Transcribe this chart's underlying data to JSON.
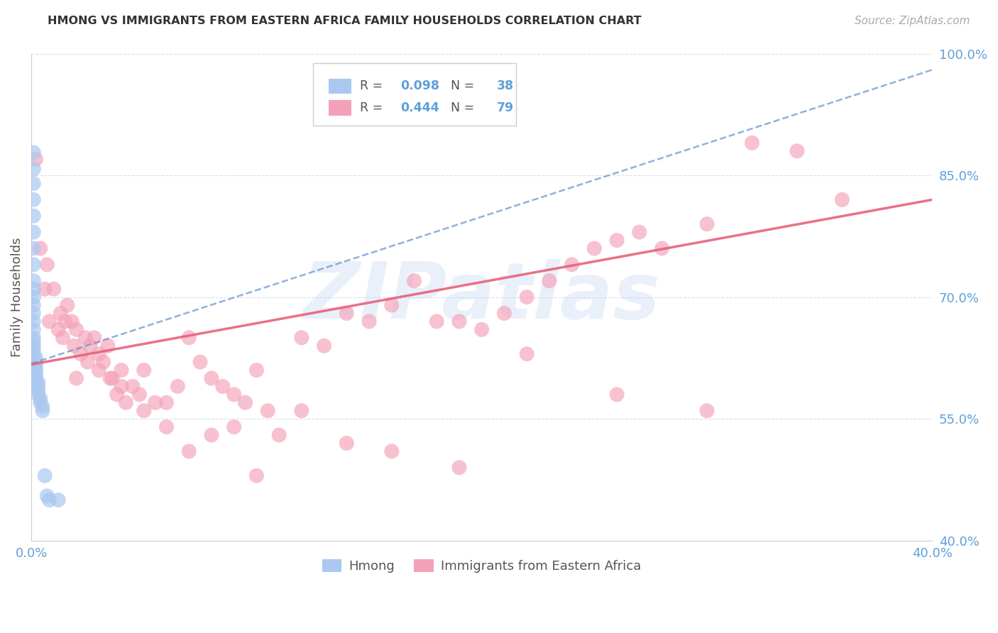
{
  "title": "HMONG VS IMMIGRANTS FROM EASTERN AFRICA FAMILY HOUSEHOLDS CORRELATION CHART",
  "source": "Source: ZipAtlas.com",
  "ylabel": "Family Households",
  "watermark": "ZIPatlas",
  "legend_hmong": "Hmong",
  "legend_eastern": "Immigrants from Eastern Africa",
  "R_hmong": 0.098,
  "N_hmong": 38,
  "R_eastern": 0.444,
  "N_eastern": 79,
  "xmin": 0.0,
  "xmax": 0.4,
  "ymin": 0.4,
  "ymax": 1.0,
  "right_yticks": [
    1.0,
    0.85,
    0.7,
    0.55,
    0.4
  ],
  "right_yticklabels": [
    "100.0%",
    "85.0%",
    "70.0%",
    "55.0%",
    "40.0%"
  ],
  "color_hmong": "#aac8f0",
  "color_eastern": "#f4a0b8",
  "color_hmong_line": "#6090d0",
  "color_eastern_line": "#e8607a",
  "color_blue_text": "#60a0d8",
  "grid_color": "#d8e0ec",
  "hmong_x": [
    0.001,
    0.001,
    0.001,
    0.001,
    0.001,
    0.001,
    0.001,
    0.001,
    0.001,
    0.001,
    0.001,
    0.001,
    0.001,
    0.001,
    0.001,
    0.001,
    0.001,
    0.001,
    0.001,
    0.001,
    0.002,
    0.002,
    0.002,
    0.002,
    0.002,
    0.002,
    0.003,
    0.003,
    0.003,
    0.003,
    0.004,
    0.004,
    0.005,
    0.005,
    0.006,
    0.007,
    0.008,
    0.012
  ],
  "hmong_y": [
    0.878,
    0.858,
    0.84,
    0.82,
    0.8,
    0.78,
    0.76,
    0.74,
    0.72,
    0.71,
    0.7,
    0.69,
    0.68,
    0.67,
    0.66,
    0.65,
    0.645,
    0.64,
    0.635,
    0.63,
    0.625,
    0.62,
    0.615,
    0.61,
    0.605,
    0.6,
    0.595,
    0.59,
    0.585,
    0.58,
    0.575,
    0.57,
    0.565,
    0.56,
    0.48,
    0.455,
    0.45,
    0.45
  ],
  "eastern_x": [
    0.002,
    0.004,
    0.006,
    0.007,
    0.008,
    0.01,
    0.012,
    0.013,
    0.014,
    0.015,
    0.016,
    0.018,
    0.019,
    0.02,
    0.022,
    0.024,
    0.026,
    0.028,
    0.03,
    0.032,
    0.034,
    0.036,
    0.038,
    0.04,
    0.042,
    0.045,
    0.048,
    0.05,
    0.055,
    0.06,
    0.065,
    0.07,
    0.075,
    0.08,
    0.085,
    0.09,
    0.095,
    0.1,
    0.105,
    0.11,
    0.12,
    0.13,
    0.14,
    0.15,
    0.16,
    0.17,
    0.18,
    0.19,
    0.2,
    0.21,
    0.22,
    0.23,
    0.24,
    0.25,
    0.26,
    0.27,
    0.28,
    0.3,
    0.32,
    0.34,
    0.36,
    0.02,
    0.025,
    0.03,
    0.035,
    0.04,
    0.05,
    0.06,
    0.07,
    0.08,
    0.09,
    0.1,
    0.12,
    0.14,
    0.16,
    0.19,
    0.22,
    0.26,
    0.3
  ],
  "eastern_y": [
    0.87,
    0.76,
    0.71,
    0.74,
    0.67,
    0.71,
    0.66,
    0.68,
    0.65,
    0.67,
    0.69,
    0.67,
    0.64,
    0.66,
    0.63,
    0.65,
    0.64,
    0.65,
    0.63,
    0.62,
    0.64,
    0.6,
    0.58,
    0.61,
    0.57,
    0.59,
    0.58,
    0.61,
    0.57,
    0.57,
    0.59,
    0.65,
    0.62,
    0.6,
    0.59,
    0.58,
    0.57,
    0.61,
    0.56,
    0.53,
    0.65,
    0.64,
    0.68,
    0.67,
    0.69,
    0.72,
    0.67,
    0.67,
    0.66,
    0.68,
    0.7,
    0.72,
    0.74,
    0.76,
    0.77,
    0.78,
    0.76,
    0.79,
    0.89,
    0.88,
    0.82,
    0.6,
    0.62,
    0.61,
    0.6,
    0.59,
    0.56,
    0.54,
    0.51,
    0.53,
    0.54,
    0.48,
    0.56,
    0.52,
    0.51,
    0.49,
    0.63,
    0.58,
    0.56
  ],
  "hmong_trend_x0": 0.0,
  "hmong_trend_y0": 0.618,
  "hmong_trend_x1": 0.4,
  "hmong_trend_y1": 0.98,
  "eastern_trend_x0": 0.0,
  "eastern_trend_y0": 0.617,
  "eastern_trend_x1": 0.4,
  "eastern_trend_y1": 0.82
}
